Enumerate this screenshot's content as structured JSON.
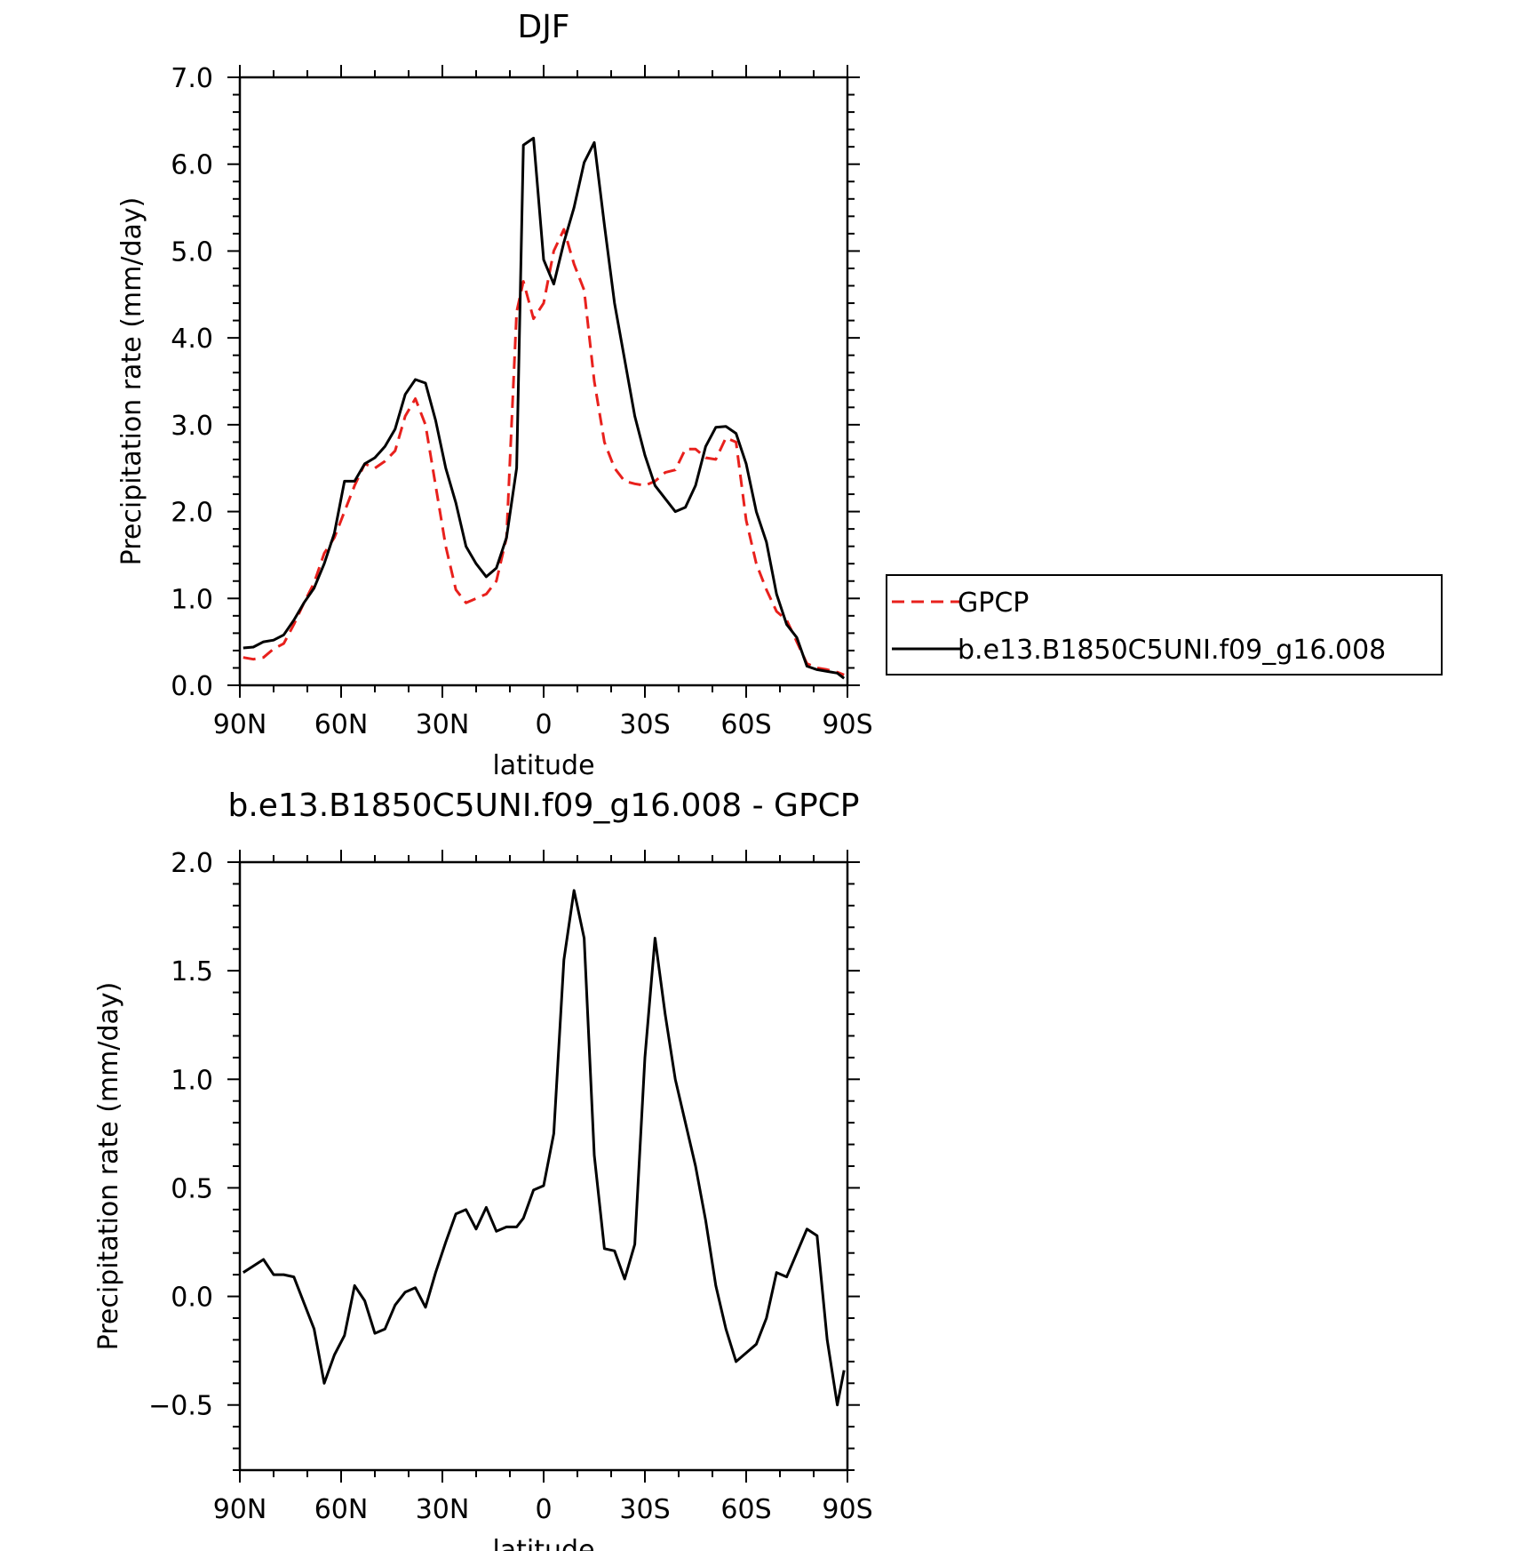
{
  "chart_data": [
    {
      "type": "line",
      "title": "DJF",
      "xlabel": "latitude",
      "ylabel": "Precipitation rate (mm/day)",
      "xlim": [
        90,
        -90
      ],
      "ylim": [
        0.0,
        7.0
      ],
      "x_ticks": [
        90,
        60,
        30,
        0,
        -30,
        -60,
        -90
      ],
      "x_tick_labels": [
        "90N",
        "60N",
        "30N",
        "0",
        "30S",
        "60S",
        "90S"
      ],
      "y_ticks": [
        0.0,
        1.0,
        2.0,
        3.0,
        4.0,
        5.0,
        6.0,
        7.0
      ],
      "y_tick_labels": [
        "0.0",
        "1.0",
        "2.0",
        "3.0",
        "4.0",
        "5.0",
        "6.0",
        "7.0"
      ],
      "legend": {
        "placement": "right"
      },
      "series": [
        {
          "name": "GPCP",
          "color": "#e8201c",
          "dash": "dashed",
          "x": [
            89,
            86,
            83,
            80,
            77,
            74,
            71,
            68,
            65,
            62,
            59,
            56,
            53,
            50,
            47,
            44,
            41,
            38,
            35,
            32,
            29,
            26,
            23,
            20,
            17,
            14,
            11,
            8,
            6,
            3,
            0,
            -3,
            -6,
            -9,
            -12,
            -15,
            -18,
            -21,
            -24,
            -27,
            -30,
            -33,
            -36,
            -39,
            -42,
            -45,
            -48,
            -51,
            -54,
            -57,
            -60,
            -63,
            -66,
            -69,
            -72,
            -75,
            -78,
            -81,
            -84,
            -87,
            -89
          ],
          "values": [
            0.32,
            0.3,
            0.32,
            0.42,
            0.48,
            0.7,
            0.95,
            1.18,
            1.52,
            1.7,
            2.0,
            2.3,
            2.55,
            2.5,
            2.58,
            2.7,
            3.1,
            3.3,
            3.0,
            2.3,
            1.6,
            1.1,
            0.95,
            1.0,
            1.05,
            1.2,
            1.7,
            4.3,
            4.65,
            4.22,
            4.4,
            5.0,
            5.25,
            4.85,
            4.55,
            3.5,
            2.8,
            2.5,
            2.35,
            2.32,
            2.3,
            2.35,
            2.45,
            2.48,
            2.72,
            2.72,
            2.62,
            2.6,
            2.85,
            2.8,
            1.9,
            1.4,
            1.1,
            0.85,
            0.75,
            0.5,
            0.25,
            0.2,
            0.18,
            0.15,
            0.12
          ]
        },
        {
          "name": "b.e13.B1850C5UNI.f09_g16.008",
          "color": "#000000",
          "dash": "solid",
          "x": [
            89,
            86,
            83,
            80,
            77,
            74,
            71,
            68,
            65,
            62,
            59,
            56,
            53,
            50,
            47,
            44,
            41,
            38,
            35,
            32,
            29,
            26,
            23,
            20,
            17,
            14,
            11,
            8,
            6,
            3,
            0,
            -3,
            -6,
            -9,
            -12,
            -15,
            -18,
            -21,
            -24,
            -27,
            -30,
            -33,
            -36,
            -39,
            -42,
            -45,
            -48,
            -51,
            -54,
            -57,
            -60,
            -63,
            -66,
            -69,
            -72,
            -75,
            -78,
            -81,
            -84,
            -87,
            -89
          ],
          "values": [
            0.43,
            0.44,
            0.5,
            0.52,
            0.58,
            0.75,
            0.95,
            1.12,
            1.4,
            1.75,
            2.35,
            2.35,
            2.55,
            2.62,
            2.75,
            2.95,
            3.35,
            3.52,
            3.48,
            3.05,
            2.5,
            2.1,
            1.6,
            1.4,
            1.25,
            1.35,
            1.7,
            2.5,
            6.22,
            6.3,
            4.9,
            4.62,
            5.1,
            5.5,
            6.02,
            6.25,
            5.3,
            4.4,
            3.75,
            3.1,
            2.65,
            2.3,
            2.15,
            2.0,
            2.05,
            2.3,
            2.75,
            2.97,
            2.98,
            2.9,
            2.55,
            2.0,
            1.65,
            1.05,
            0.7,
            0.55,
            0.22,
            0.18,
            0.16,
            0.14,
            0.08
          ]
        }
      ]
    },
    {
      "type": "line",
      "title": "b.e13.B1850C5UNI.f09_g16.008 - GPCP",
      "xlabel": "latitude",
      "ylabel": "Precipitation rate (mm/day)",
      "xlim": [
        90,
        -90
      ],
      "ylim": [
        -0.8,
        2.0
      ],
      "x_ticks": [
        90,
        60,
        30,
        0,
        -30,
        -60,
        -90
      ],
      "x_tick_labels": [
        "90N",
        "60N",
        "30N",
        "0",
        "30S",
        "60S",
        "90S"
      ],
      "y_ticks": [
        -0.5,
        0.0,
        0.5,
        1.0,
        1.5,
        2.0
      ],
      "y_tick_labels": [
        "−0.5",
        "0.0",
        "0.5",
        "1.0",
        "1.5",
        "2.0"
      ],
      "series": [
        {
          "color": "#000000",
          "dash": "solid",
          "x": [
            89,
            86,
            83,
            80,
            77,
            74,
            71,
            68,
            65,
            62,
            59,
            56,
            53,
            50,
            47,
            44,
            41,
            38,
            35,
            32,
            29,
            26,
            23,
            20,
            17,
            14,
            11,
            8,
            6,
            3,
            0,
            -3,
            -6,
            -9,
            -12,
            -15,
            -18,
            -21,
            -24,
            -27,
            -30,
            -33,
            -36,
            -39,
            -42,
            -45,
            -48,
            -51,
            -54,
            -57,
            -60,
            -63,
            -66,
            -69,
            -72,
            -75,
            -78,
            -81,
            -84,
            -87,
            -89
          ],
          "values": [
            0.11,
            0.14,
            0.17,
            0.1,
            0.1,
            0.09,
            -0.03,
            -0.15,
            -0.4,
            -0.27,
            -0.18,
            0.05,
            -0.02,
            -0.17,
            -0.15,
            -0.04,
            0.02,
            0.04,
            -0.05,
            0.11,
            0.25,
            0.38,
            0.4,
            0.31,
            0.41,
            0.3,
            0.32,
            0.32,
            0.36,
            0.49,
            0.51,
            0.75,
            1.55,
            1.87,
            1.65,
            0.65,
            0.22,
            0.21,
            0.08,
            0.24,
            1.1,
            1.65,
            1.3,
            1.0,
            0.8,
            0.6,
            0.35,
            0.05,
            -0.15,
            -0.3,
            -0.26,
            -0.22,
            -0.1,
            0.11,
            0.09,
            0.2,
            0.31,
            0.28,
            -0.2,
            -0.5,
            -0.34
          ]
        }
      ]
    }
  ]
}
